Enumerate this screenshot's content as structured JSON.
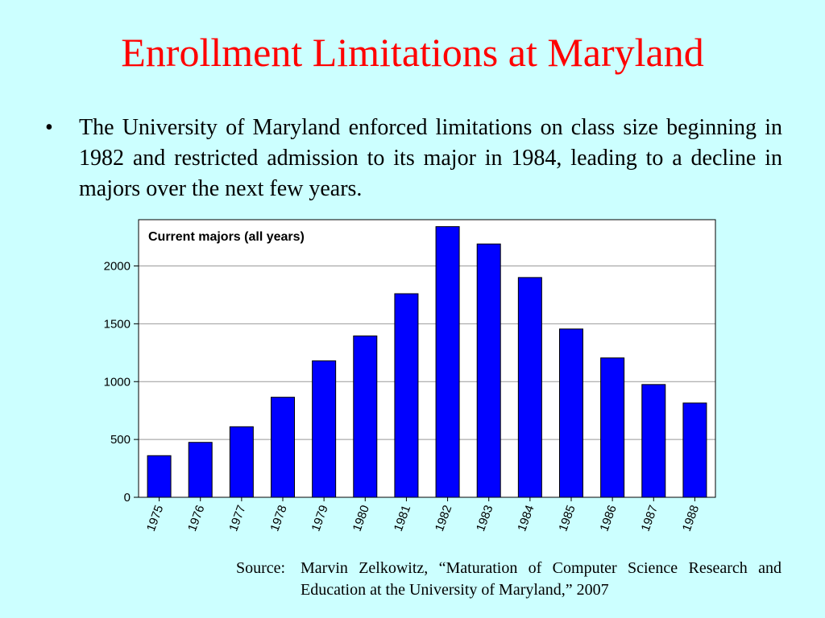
{
  "slide": {
    "title": "Enrollment Limitations at Maryland",
    "bullet": "The University of Maryland enforced limitations on class size beginning in 1982 and restricted admission to its major in 1984, leading to a decline in majors over the next few years.",
    "source_label": "Source:",
    "source_text": "Marvin Zelkowitz, “Maturation of Computer Science Research and Education at the University of Maryland,” 2007"
  },
  "chart_data": {
    "type": "bar",
    "title": "Current majors (all years)",
    "xlabel": "",
    "ylabel": "",
    "categories": [
      "1975",
      "1976",
      "1977",
      "1978",
      "1979",
      "1980",
      "1981",
      "1982",
      "1983",
      "1984",
      "1985",
      "1986",
      "1987",
      "1988"
    ],
    "values": [
      360,
      475,
      610,
      865,
      1180,
      1395,
      1760,
      2340,
      2190,
      1900,
      1455,
      1205,
      975,
      815
    ],
    "ylim": [
      0,
      2400
    ],
    "yticks": [
      0,
      500,
      1000,
      1500,
      2000
    ],
    "grid": true,
    "bar_color": "#0000ff",
    "grid_color": "#999999"
  }
}
